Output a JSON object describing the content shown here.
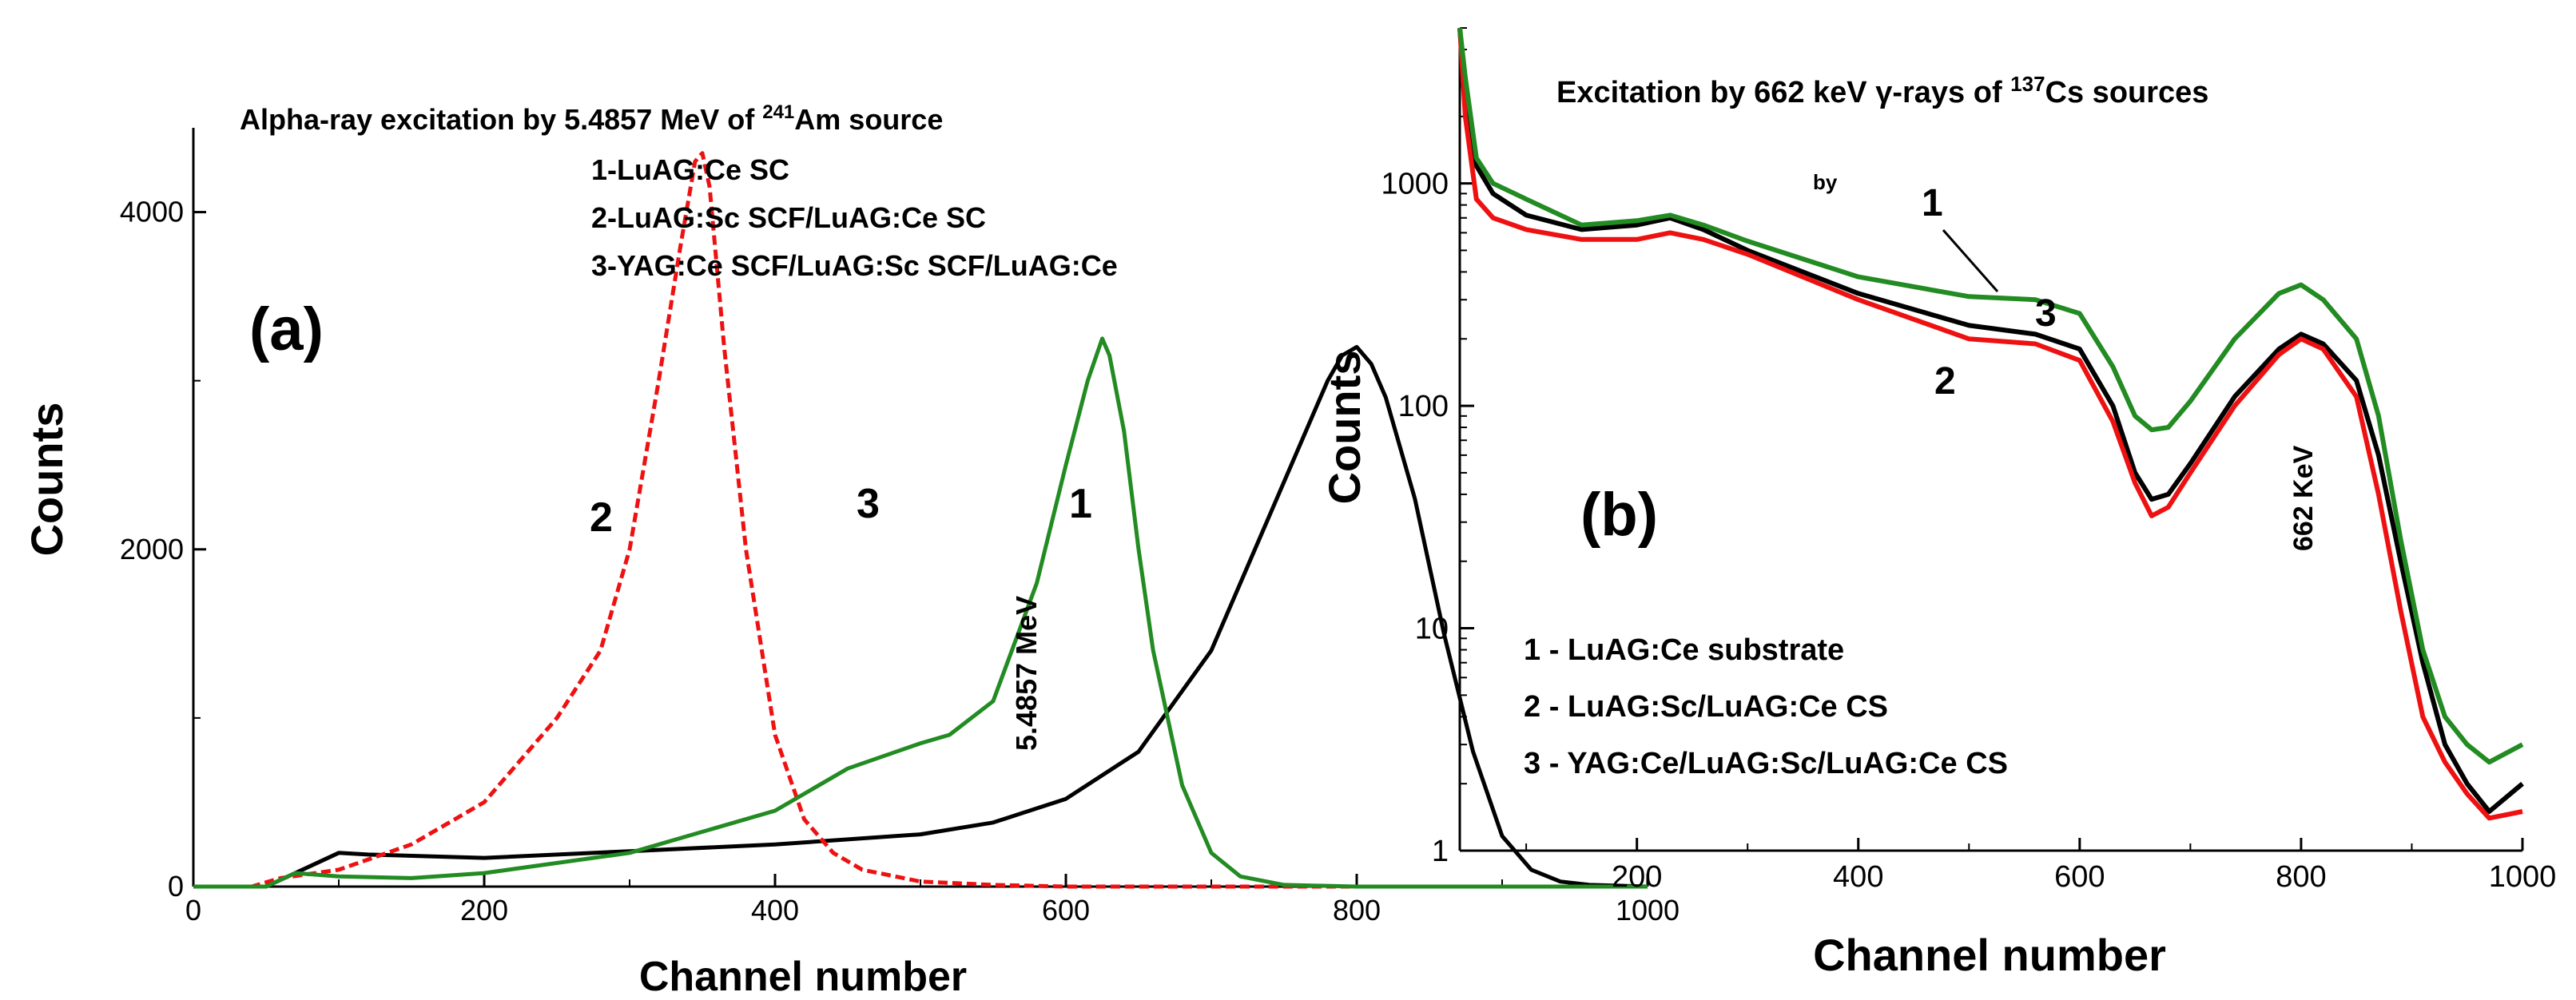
{
  "chart_data": [
    {
      "panel": "a",
      "type": "line",
      "panel_label": "(a)",
      "title": {
        "prefix": "Alpha-ray excitation by 5.4857 MeV of ",
        "sup": "241",
        "suffix": "Am source"
      },
      "xlabel": "Channel number",
      "ylabel": "Counts",
      "xlim": [
        0,
        1000
      ],
      "ylim": [
        0,
        4500
      ],
      "xticks": [
        0,
        200,
        400,
        600,
        800,
        1000
      ],
      "xtick_labels": [
        "0",
        "200",
        "400",
        "600",
        "800",
        "1000"
      ],
      "yticks": [
        0,
        2000,
        4000
      ],
      "ytick_labels": [
        "0",
        "2000",
        "4000"
      ],
      "legend": [
        "1-LuAG:Ce SC",
        "2-LuAG:Sc SCF/LuAG:Ce SC",
        "3-YAG:Ce SCF/LuAG:Sc SCF/LuAG:Ce"
      ],
      "annotations": {
        "peak_energy": "5.4857 MeV",
        "curve_1": "1",
        "curve_2": "2",
        "curve_3": "3"
      },
      "series": [
        {
          "name": "1",
          "color": "#000000",
          "style": "solid",
          "x": [
            0,
            50,
            80,
            100,
            120,
            200,
            300,
            400,
            500,
            550,
            600,
            650,
            700,
            730,
            760,
            780,
            790,
            800,
            810,
            820,
            840,
            860,
            880,
            900,
            920,
            940,
            960,
            1000
          ],
          "y": [
            0,
            0,
            120,
            200,
            190,
            170,
            210,
            250,
            310,
            380,
            520,
            800,
            1400,
            2000,
            2600,
            3000,
            3150,
            3200,
            3100,
            2900,
            2300,
            1500,
            800,
            300,
            100,
            30,
            10,
            0
          ]
        },
        {
          "name": "2",
          "color": "#ee1111",
          "style": "dashed",
          "x": [
            0,
            40,
            60,
            100,
            150,
            200,
            250,
            280,
            300,
            320,
            335,
            345,
            350,
            355,
            365,
            380,
            400,
            420,
            440,
            460,
            500,
            550,
            600,
            1000
          ],
          "y": [
            0,
            0,
            50,
            100,
            250,
            500,
            1000,
            1400,
            2000,
            3000,
            3800,
            4300,
            4350,
            4150,
            3200,
            2000,
            900,
            400,
            200,
            100,
            30,
            10,
            0,
            0
          ]
        },
        {
          "name": "3",
          "color": "#228b22",
          "style": "solid",
          "x": [
            0,
            50,
            70,
            100,
            150,
            200,
            300,
            400,
            450,
            500,
            520,
            550,
            580,
            600,
            615,
            625,
            630,
            640,
            650,
            660,
            680,
            700,
            720,
            750,
            800,
            1000
          ],
          "y": [
            0,
            0,
            80,
            60,
            50,
            80,
            200,
            450,
            700,
            850,
            900,
            1100,
            1800,
            2500,
            3000,
            3250,
            3150,
            2700,
            2000,
            1400,
            600,
            200,
            60,
            10,
            0,
            0
          ]
        }
      ]
    },
    {
      "panel": "b",
      "type": "line",
      "yscale": "log",
      "panel_label": "(b)",
      "title": {
        "prefix": "Excitation by ",
        "mid": "662 keV γ-rays of ",
        "sup": "137",
        "suffix": "Cs sources"
      },
      "xlabel": "Channel number",
      "ylabel": "Counts",
      "xlim": [
        40,
        1000
      ],
      "ylim": [
        1,
        5000
      ],
      "xticks": [
        200,
        400,
        600,
        800,
        1000
      ],
      "xtick_labels": [
        "200",
        "400",
        "600",
        "800",
        "1000"
      ],
      "yticks": [
        1,
        10,
        100,
        1000
      ],
      "ytick_labels": [
        "1",
        "10",
        "100",
        "1000"
      ],
      "legend": [
        "1 - LuAG:Ce substrate",
        "2 - LuAG:Sc/LuAG:Ce CS",
        "3 - YAG:Ce/LuAG:Sc/LuAG:Ce CS"
      ],
      "annotations": {
        "peak_energy": "662 KeV",
        "stray_text": "by",
        "curve_1": "1",
        "curve_2": "2",
        "curve_3": "3"
      },
      "series": [
        {
          "name": "1",
          "color": "#000000",
          "x": [
            40,
            45,
            55,
            70,
            100,
            150,
            200,
            230,
            260,
            300,
            400,
            500,
            560,
            600,
            630,
            650,
            665,
            680,
            700,
            740,
            780,
            800,
            820,
            850,
            870,
            890,
            910,
            930,
            950,
            970,
            1000
          ],
          "y": [
            5000,
            2500,
            1200,
            900,
            720,
            620,
            650,
            700,
            620,
            500,
            320,
            230,
            210,
            180,
            100,
            50,
            38,
            40,
            55,
            110,
            180,
            210,
            190,
            130,
            60,
            20,
            7,
            3,
            2,
            1.5,
            2
          ]
        },
        {
          "name": "2",
          "color": "#ee1111",
          "x": [
            40,
            45,
            55,
            70,
            100,
            150,
            200,
            230,
            260,
            300,
            400,
            500,
            560,
            600,
            630,
            650,
            665,
            680,
            700,
            740,
            780,
            800,
            820,
            850,
            870,
            890,
            910,
            930,
            950,
            970,
            1000
          ],
          "y": [
            5000,
            2000,
            850,
            700,
            620,
            560,
            560,
            600,
            560,
            480,
            300,
            200,
            190,
            160,
            85,
            45,
            32,
            35,
            50,
            100,
            170,
            200,
            180,
            110,
            40,
            12,
            4,
            2.5,
            1.8,
            1.4,
            1.5
          ]
        },
        {
          "name": "3",
          "color": "#228b22",
          "x": [
            40,
            45,
            55,
            70,
            100,
            150,
            200,
            230,
            260,
            300,
            400,
            500,
            560,
            600,
            630,
            650,
            665,
            680,
            700,
            740,
            780,
            800,
            820,
            850,
            870,
            890,
            910,
            930,
            950,
            970,
            1000
          ],
          "y": [
            5000,
            3000,
            1300,
            1000,
            850,
            650,
            680,
            720,
            650,
            550,
            380,
            310,
            300,
            260,
            150,
            90,
            78,
            80,
            105,
            200,
            320,
            350,
            300,
            200,
            90,
            25,
            8,
            4,
            3,
            2.5,
            3
          ]
        }
      ]
    }
  ]
}
